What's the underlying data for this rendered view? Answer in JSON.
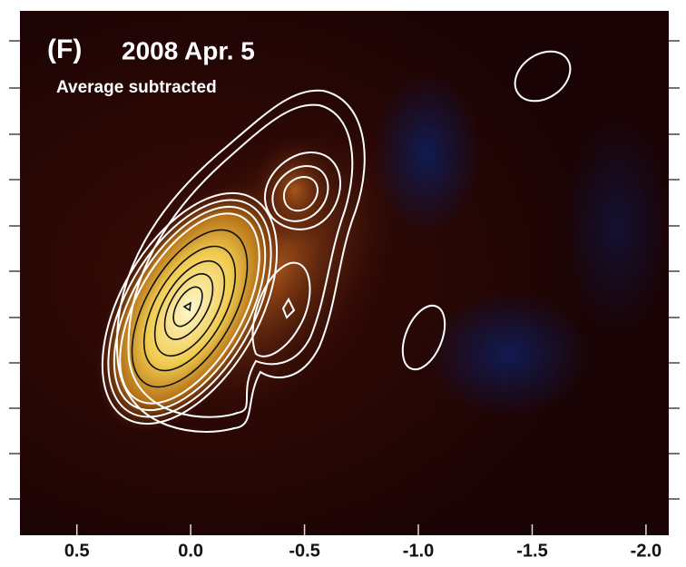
{
  "chart_data": {
    "type": "image",
    "label": "(F)",
    "title": "2008 Apr. 5",
    "subtitle": "Average subtracted",
    "xlim": [
      0.75,
      -2.1
    ],
    "xticks": [
      0.5,
      {
        "value": 0,
        "label": "0.0"
      },
      -0.5,
      {
        "value": -1,
        "label": "-1.0"
      },
      -1.5,
      {
        "value": -2,
        "label": "-2.0"
      }
    ]
  }
}
